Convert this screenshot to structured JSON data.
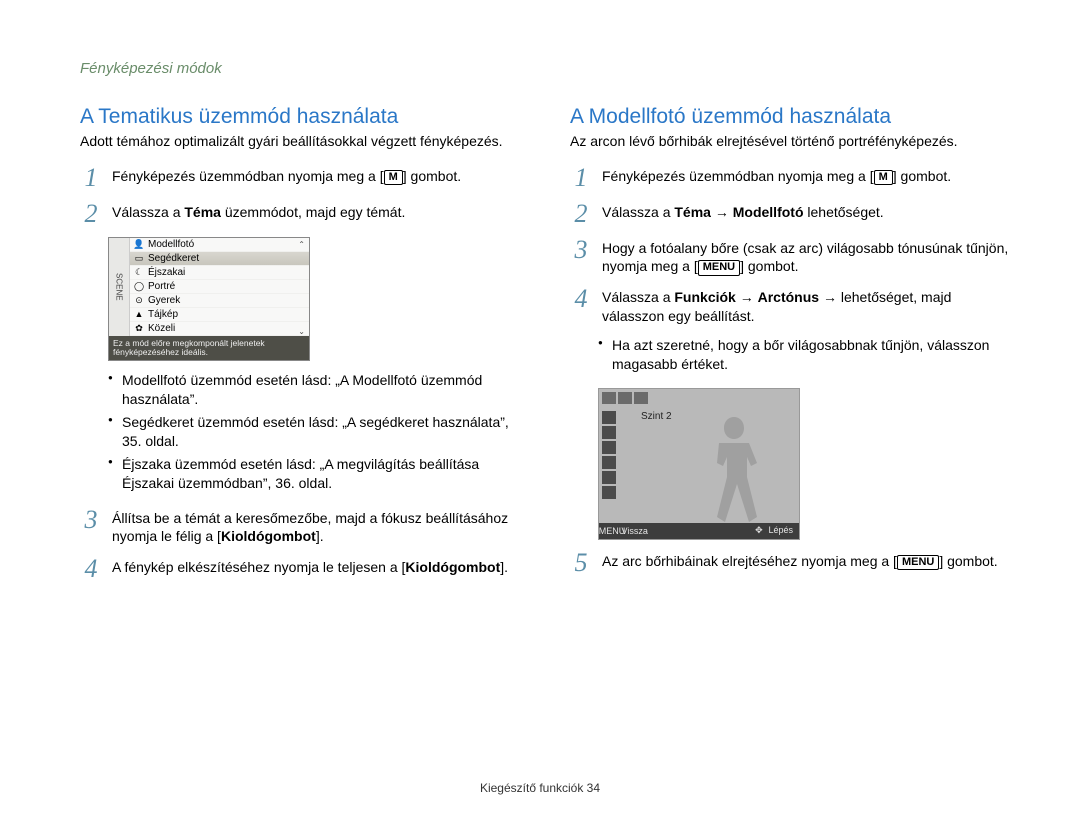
{
  "page": {
    "section": "Fényképezési módok",
    "footer": "Kiegészítő funkciók  34"
  },
  "icons": {
    "M": "M",
    "MENU": "MENU",
    "arrow": "→"
  },
  "scene_menu": {
    "side_label": "SCENE",
    "items": [
      {
        "icon": "👤",
        "label": "Modellfotó"
      },
      {
        "icon": "▭",
        "label": "Segédkeret",
        "selected": true
      },
      {
        "icon": "☾",
        "label": "Éjszakai"
      },
      {
        "icon": "◯",
        "label": "Portré"
      },
      {
        "icon": "⊙",
        "label": "Gyerek"
      },
      {
        "icon": "▲",
        "label": "Tájkép"
      },
      {
        "icon": "✿",
        "label": "Közeli"
      }
    ],
    "caption": "Ez a mód előre megkomponált jelenetek fényképezéséhez ideális."
  },
  "preview": {
    "level_label": "Szint 2",
    "back": "Vissza",
    "menu_icon": "MENU",
    "step": "Lépés",
    "step_icon": "✥"
  },
  "left": {
    "title": "A Tematikus üzemmód használata",
    "lead": "Adott témához optimalizált gyári beállításokkal végzett fényképezés.",
    "step1_pre": "Fényképezés üzemmódban nyomja meg a [",
    "step1_post": "] gombot.",
    "step2_a": "Válassza a ",
    "step2_b": "Téma",
    "step2_c": " üzemmódot, majd egy témát.",
    "b1": "Modellfotó üzemmód esetén lásd: „A Modellfotó üzemmód használata”.",
    "b2": "Segédkeret üzemmód esetén lásd: „A segédkeret használata”, 35. oldal.",
    "b3": "Éjszaka üzemmód esetén lásd: „A megvilágítás beállítása Éjszakai üzemmódban”, 36. oldal.",
    "step3_a": "Állítsa be a témát a keresőmezőbe, majd a fókusz beállításához nyomja le félig a [",
    "step3_b": "Kioldógombot",
    "step3_c": "].",
    "step4_a": "A fénykép elkészítéséhez nyomja le teljesen a [",
    "step4_b": "Kioldógombot",
    "step4_c": "]."
  },
  "right": {
    "title": "A Modellfotó üzemmód használata",
    "lead": "Az arcon lévő bőrhibák elrejtésével történő portréfényképezés.",
    "step1_pre": "Fényképezés üzemmódban nyomja meg a [",
    "step1_post": "] gombot.",
    "step2_a": "Válassza a ",
    "step2_b": "Téma",
    "step2_c": "Modellfotó",
    "step2_d": " lehetőséget.",
    "step3_a": "Hogy a fotóalany bőre (csak az arc) világosabb tónusúnak tűnjön, nyomja meg a [",
    "step3_b": "] gombot.",
    "step4_a": "Válassza a ",
    "step4_b": "Funkciók",
    "step4_c": "Arctónus",
    "step4_d": " lehetőséget, majd válasszon egy beállítást.",
    "b1": "Ha azt szeretné, hogy a bőr világosabbnak tűnjön, válasszon magasabb értéket.",
    "step5_a": "Az arc bőrhibáinak elrejtéséhez nyomja meg a [",
    "step5_b": "] gombot."
  }
}
